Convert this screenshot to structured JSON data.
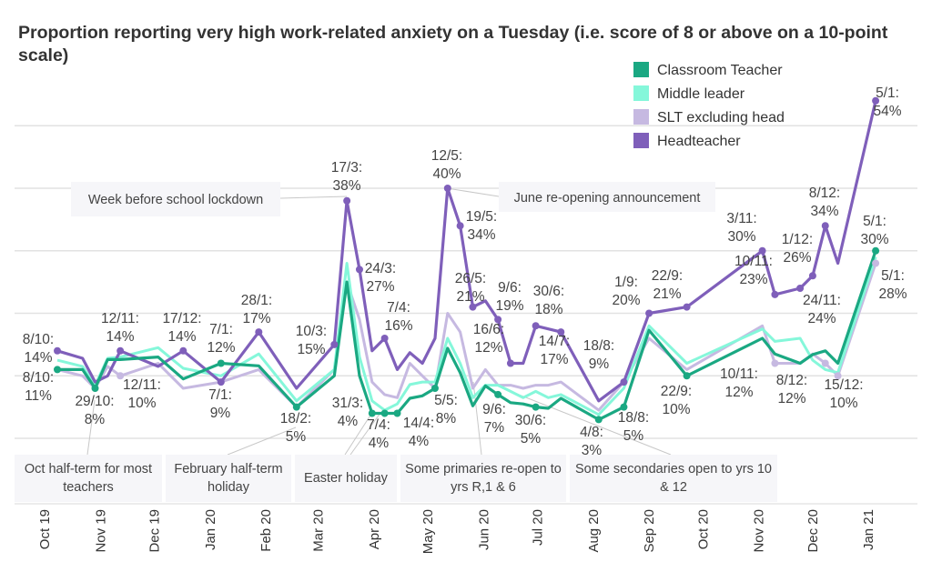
{
  "chart_data": {
    "type": "line",
    "title": "Proportion reporting very high work-related anxiety on a Tuesday (i.e. score of 8 or above on a 10-point scale)",
    "xlabel": "",
    "ylabel": "",
    "ylim": [
      0,
      50
    ],
    "y_unit": "%",
    "grid": true,
    "y_tick_labels_shown": false,
    "legend_position": "top-right",
    "x_tick_labels": [
      "Oct 19",
      "Nov 19",
      "Dec 19",
      "Jan 20",
      "Feb 20",
      "Mar 20",
      "Apr 20",
      "May 20",
      "Jun 20",
      "Jul 20",
      "Aug 20",
      "Sep 20",
      "Oct 20",
      "Nov 20",
      "Dec 20",
      "Jan 21"
    ],
    "x": [
      "2019-10-08",
      "2019-10-22",
      "2019-10-29",
      "2019-11-05",
      "2019-11-12",
      "2019-12-03",
      "2019-12-17",
      "2020-01-07",
      "2020-01-28",
      "2020-02-18",
      "2020-03-10",
      "2020-03-17",
      "2020-03-24",
      "2020-03-31",
      "2020-04-07",
      "2020-04-14",
      "2020-04-21",
      "2020-04-28",
      "2020-05-05",
      "2020-05-12",
      "2020-05-19",
      "2020-05-26",
      "2020-06-02",
      "2020-06-09",
      "2020-06-16",
      "2020-06-23",
      "2020-06-30",
      "2020-07-07",
      "2020-07-14",
      "2020-08-04",
      "2020-08-18",
      "2020-09-01",
      "2020-09-22",
      "2020-11-03",
      "2020-11-10",
      "2020-11-24",
      "2020-12-01",
      "2020-12-08",
      "2020-12-15",
      "2021-01-05"
    ],
    "series": [
      {
        "name": "Classroom Teacher",
        "color": "#1aa882",
        "values": [
          11,
          11,
          8,
          12.6,
          12.6,
          13,
          9.5,
          12,
          11.6,
          5,
          10,
          25,
          10,
          4,
          4,
          4,
          6.4,
          6.8,
          8,
          14.4,
          10.5,
          5.2,
          8.4,
          7,
          5.7,
          5.5,
          5,
          4.8,
          6.4,
          3,
          5,
          17.3,
          10,
          16,
          13.5,
          12,
          13.4,
          14,
          12,
          30
        ]
      },
      {
        "name": "Middle leader",
        "color": "#85f7da",
        "values": [
          12.5,
          11.5,
          8.5,
          12.8,
          13,
          14.5,
          11.2,
          10,
          13.5,
          6,
          11,
          28,
          13,
          6,
          4.5,
          5.5,
          8.6,
          9,
          9,
          16,
          12,
          6.5,
          8.5,
          8.5,
          7.5,
          6.5,
          7.5,
          6.5,
          7,
          3.8,
          8,
          18,
          12,
          17.5,
          15.5,
          16,
          12.5,
          11,
          10.5,
          29
        ]
      },
      {
        "name": "SLT excluding head",
        "color": "#c6b9e1",
        "values": [
          11,
          10,
          8,
          11.5,
          10,
          12,
          8,
          9,
          11,
          5,
          11,
          25,
          19,
          9,
          7,
          6.5,
          12,
          10,
          8,
          20,
          17,
          8,
          11,
          8.5,
          8.5,
          8,
          8.5,
          8.5,
          9,
          4.5,
          9,
          16,
          11,
          18,
          12,
          12,
          13.5,
          12,
          10,
          28
        ]
      },
      {
        "name": "Headteacher",
        "color": "#7f5fba",
        "values": [
          14,
          12.8,
          9,
          10,
          14,
          11.5,
          14,
          9,
          17,
          8,
          15,
          38,
          27,
          14,
          16,
          11,
          13.7,
          12,
          16,
          40,
          34,
          21,
          22,
          19,
          12,
          12,
          18,
          17.5,
          17,
          6,
          9,
          20,
          21,
          30,
          23,
          24,
          26,
          34,
          28,
          54
        ]
      }
    ],
    "data_labels": [
      {
        "series": 3,
        "date": "8/10",
        "value": "14%"
      },
      {
        "series": 0,
        "date": "8/10",
        "value": "11%"
      },
      {
        "series": 0,
        "date": "29/10",
        "value": "8%"
      },
      {
        "series": 3,
        "date": "12/11",
        "value": "14%"
      },
      {
        "series": 2,
        "date": "12/11",
        "value": "10%"
      },
      {
        "series": 3,
        "date": "17/12",
        "value": "14%"
      },
      {
        "series": 0,
        "date": "7/1",
        "value": "12%"
      },
      {
        "series": 3,
        "date": "7/1",
        "value": "9%"
      },
      {
        "series": 3,
        "date": "28/1",
        "value": "17%"
      },
      {
        "series": 0,
        "date": "18/2",
        "value": "5%"
      },
      {
        "series": 3,
        "date": "10/3",
        "value": "15%"
      },
      {
        "series": 3,
        "date": "17/3",
        "value": "38%"
      },
      {
        "series": 3,
        "date": "24/3",
        "value": "27%"
      },
      {
        "series": 3,
        "date": "7/4",
        "value": "16%"
      },
      {
        "series": 0,
        "date": "31/3",
        "value": "4%"
      },
      {
        "series": 0,
        "date": "7/4",
        "value": "4%"
      },
      {
        "series": 0,
        "date": "14/4",
        "value": "4%"
      },
      {
        "series": 0,
        "date": "5/5",
        "value": "8%"
      },
      {
        "series": 3,
        "date": "12/5",
        "value": "40%"
      },
      {
        "series": 3,
        "date": "19/5",
        "value": "34%"
      },
      {
        "series": 3,
        "date": "26/5",
        "value": "21%"
      },
      {
        "series": 3,
        "date": "9/6",
        "value": "19%"
      },
      {
        "series": 3,
        "date": "16/6",
        "value": "12%"
      },
      {
        "series": 3,
        "date": "30/6",
        "value": "18%"
      },
      {
        "series": 3,
        "date": "14/7",
        "value": "17%"
      },
      {
        "series": 3,
        "date": "18/8",
        "value": "9%"
      },
      {
        "series": 0,
        "date": "9/6",
        "value": "7%"
      },
      {
        "series": 0,
        "date": "30/6",
        "value": "5%"
      },
      {
        "series": 0,
        "date": "4/8",
        "value": "3%"
      },
      {
        "series": 0,
        "date": "18/8",
        "value": "5%"
      },
      {
        "series": 3,
        "date": "1/9",
        "value": "20%"
      },
      {
        "series": 3,
        "date": "22/9",
        "value": "21%"
      },
      {
        "series": 0,
        "date": "22/9",
        "value": "10%"
      },
      {
        "series": 3,
        "date": "3/11",
        "value": "30%"
      },
      {
        "series": 3,
        "date": "10/11",
        "value": "23%"
      },
      {
        "series": 3,
        "date": "1/12",
        "value": "26%"
      },
      {
        "series": 3,
        "date": "8/12",
        "value": "34%"
      },
      {
        "series": 3,
        "date": "24/11",
        "value": "24%"
      },
      {
        "series": 3,
        "date": "5/1",
        "value": "54%"
      },
      {
        "series": 0,
        "date": "5/1",
        "value": "30%"
      },
      {
        "series": 2,
        "date": "5/1",
        "value": "28%"
      },
      {
        "series": 2,
        "date": "10/11",
        "value": "12%"
      },
      {
        "series": 2,
        "date": "8/12",
        "value": "12%"
      },
      {
        "series": 2,
        "date": "15/12",
        "value": "10%"
      }
    ],
    "annotations": [
      {
        "lines": [
          "Week before school lockdown"
        ]
      },
      {
        "lines": [
          "June re-opening announcement"
        ]
      },
      {
        "lines": [
          "Oct half-term for most",
          "teachers"
        ]
      },
      {
        "lines": [
          "February half-term holiday"
        ]
      },
      {
        "lines": [
          "Easter holiday"
        ]
      },
      {
        "lines": [
          "Some primaries re-open to",
          "yrs R,1 & 6"
        ]
      },
      {
        "lines": [
          "Some secondaries open to yrs 10",
          "& 12"
        ]
      }
    ]
  }
}
